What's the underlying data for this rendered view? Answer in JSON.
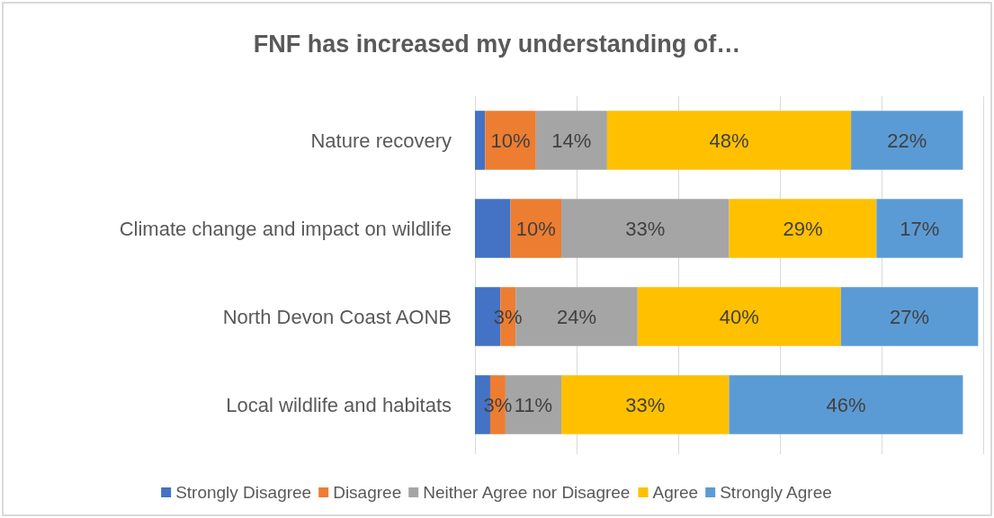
{
  "chart_data": {
    "type": "bar",
    "title": "FNF has increased my understanding of…",
    "orientation": "horizontal",
    "stacked": true,
    "categories": [
      "Nature recovery",
      "Climate change and impact on wildlife",
      "North Devon Coast AONB",
      "Local wildlife and habitats"
    ],
    "series": [
      {
        "name": "Strongly Disagree",
        "color": "#4472c4",
        "values": [
          2,
          7,
          5,
          3
        ],
        "value_labels": [
          null,
          null,
          null,
          null
        ]
      },
      {
        "name": "Disagree",
        "color": "#ed7d31",
        "values": [
          10,
          10,
          3,
          3
        ],
        "value_labels": [
          "10%",
          "10%",
          "3%",
          "3%"
        ]
      },
      {
        "name": "Neither Agree nor Disagree",
        "color": "#a5a5a5",
        "values": [
          14,
          33,
          24,
          11
        ],
        "value_labels": [
          "14%",
          "33%",
          "24%",
          "11%"
        ]
      },
      {
        "name": "Agree",
        "color": "#ffc000",
        "values": [
          48,
          29,
          40,
          33
        ],
        "value_labels": [
          "48%",
          "29%",
          "40%",
          "33%"
        ]
      },
      {
        "name": "Strongly Agree",
        "color": "#5b9bd5",
        "values": [
          22,
          17,
          27,
          46
        ],
        "value_labels": [
          "22%",
          "17%",
          "27%",
          "46%"
        ]
      }
    ],
    "xlim": [
      0,
      100
    ],
    "xticks": [
      {
        "value": 0,
        "label": null
      },
      {
        "value": 20,
        "label": null
      },
      {
        "value": 40,
        "label": null
      },
      {
        "value": 60,
        "label": null
      },
      {
        "value": 80,
        "label": null
      },
      {
        "value": 100,
        "label": null
      }
    ],
    "tick_labels": "y",
    "grid": "x",
    "legend": "bottom"
  }
}
